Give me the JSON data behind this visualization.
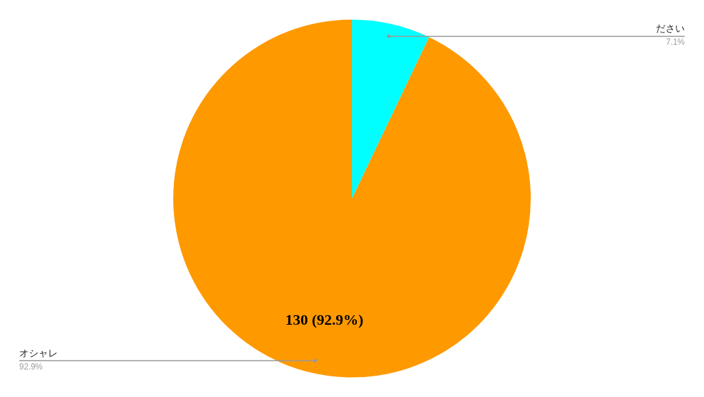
{
  "chart_data": {
    "type": "pie",
    "categories": [
      "ださい",
      "オシャレ"
    ],
    "values": [
      7.1,
      92.9
    ],
    "colors": [
      "#00ffff",
      "#ff9900"
    ],
    "value_labels": [
      null,
      "130 (92.9%)"
    ],
    "annotations": [
      "7.1%",
      "92.9%"
    ],
    "legend": false
  }
}
